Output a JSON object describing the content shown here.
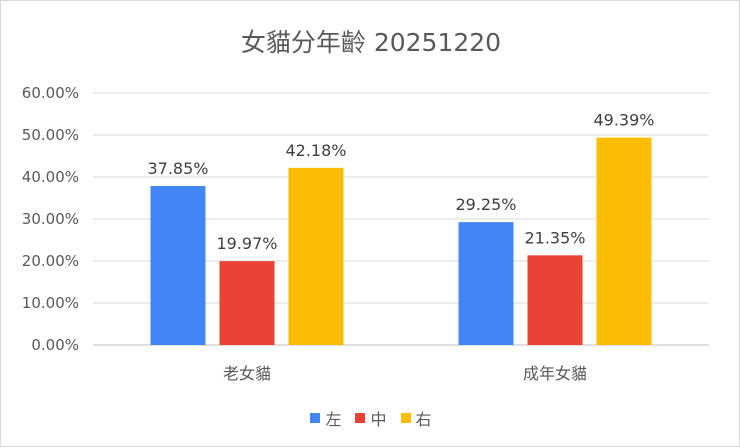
{
  "chart_data": {
    "type": "bar",
    "title": "女貓分年齡 20251220",
    "categories": [
      "老女貓",
      "成年女貓"
    ],
    "series": [
      {
        "name": "左",
        "values": [
          37.85,
          29.25
        ],
        "color": "#4285f4"
      },
      {
        "name": "中",
        "values": [
          19.97,
          21.35
        ],
        "color": "#ea4335"
      },
      {
        "name": "右",
        "values": [
          42.18,
          49.39
        ],
        "color": "#fbbc04"
      }
    ],
    "y_ticks": [
      "0.00%",
      "10.00%",
      "20.00%",
      "30.00%",
      "40.00%",
      "50.00%",
      "60.00%"
    ],
    "ylim": [
      0,
      60
    ],
    "value_format": "percent_2dp",
    "grid": true,
    "legend_position": "bottom"
  }
}
